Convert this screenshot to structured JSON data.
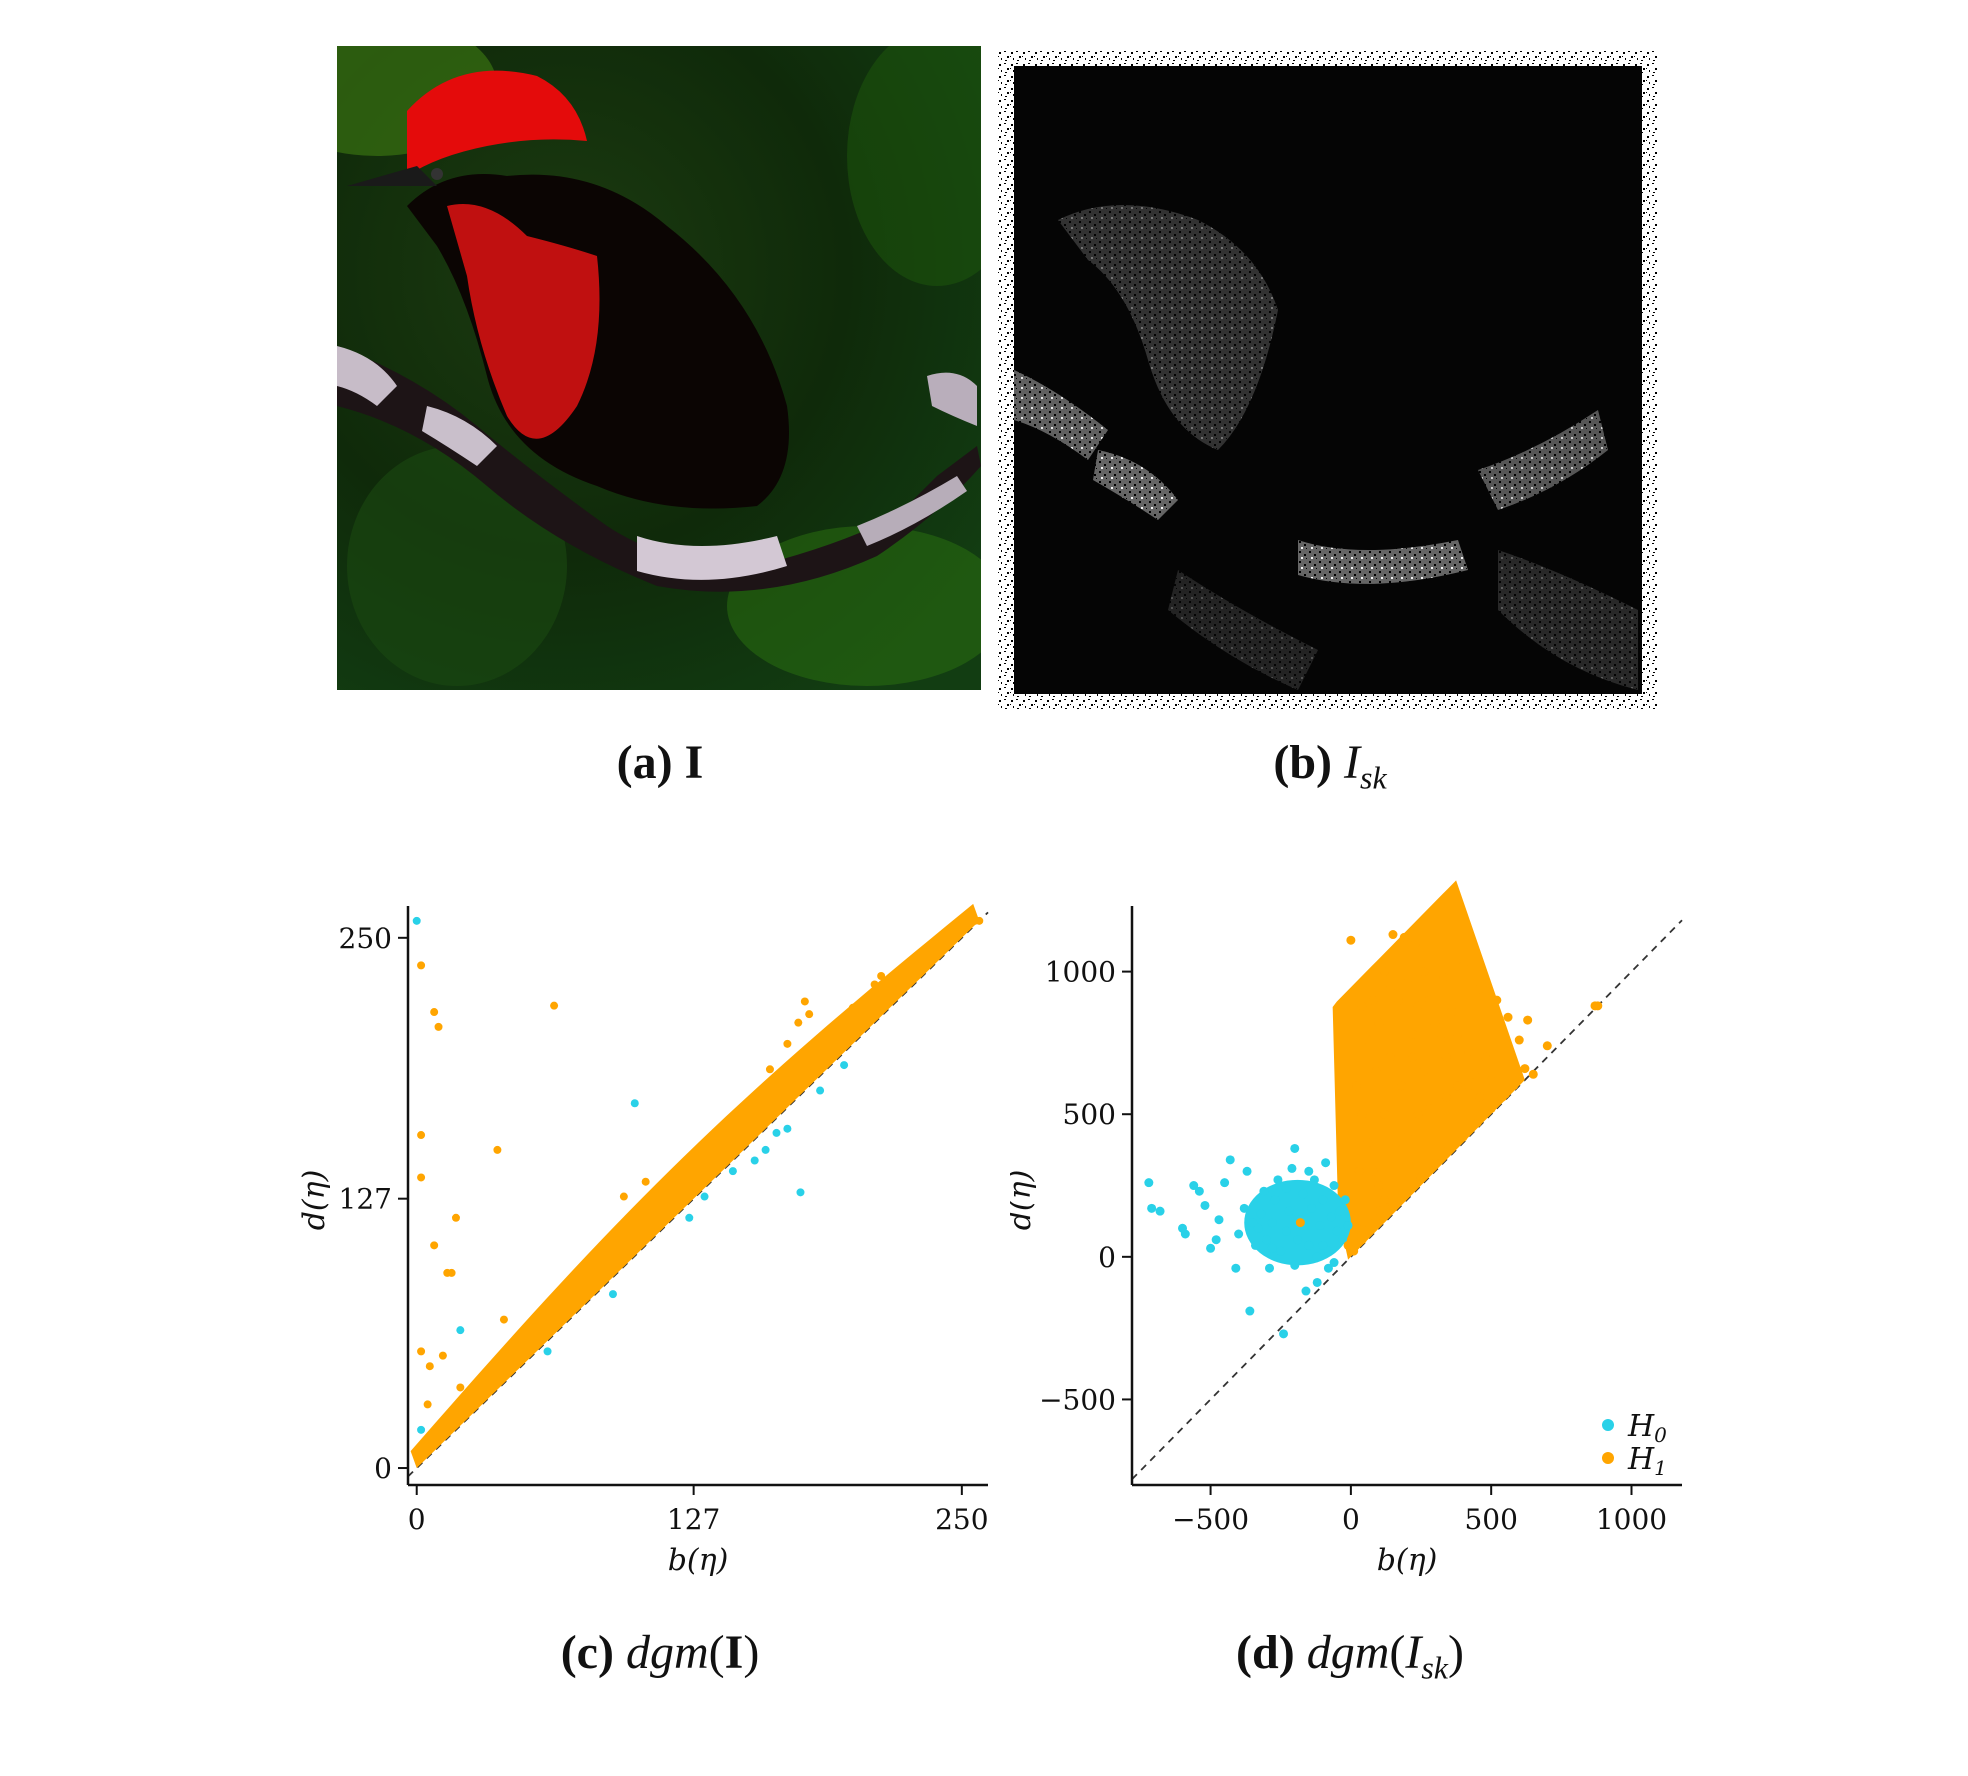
{
  "panels": {
    "a": {
      "caption_label": "(a)",
      "caption_symbol": "I"
    },
    "b": {
      "caption_label": "(b)",
      "caption_symbol": "I",
      "caption_sub": "sk"
    },
    "c": {
      "caption_label": "(c)",
      "caption_func": "dgm",
      "caption_arg": "I"
    },
    "d": {
      "caption_label": "(d)",
      "caption_func": "dgm",
      "caption_arg": "I",
      "caption_sub": "sk"
    }
  },
  "colors": {
    "H0": "#29d1e8",
    "H1": "#ffa500",
    "diagonal": "#333333"
  },
  "chart_data": [
    {
      "type": "scatter",
      "title": "",
      "xlabel": "b(η)",
      "ylabel": "d(η)",
      "xlim": [
        -4,
        262
      ],
      "ylim": [
        -8,
        265
      ],
      "xticks": [
        0,
        127,
        250
      ],
      "yticks": [
        0,
        127,
        250
      ],
      "diagonal": true,
      "legend": false,
      "series": [
        {
          "key": "H0",
          "points": [
            [
              0,
              258
            ],
            [
              246,
              252
            ],
            [
              248,
              255
            ],
            [
              250,
              256
            ],
            [
              244,
              249
            ],
            [
              242,
              247
            ],
            [
              252,
              257
            ],
            [
              240,
              246
            ],
            [
              100,
              172
            ],
            [
              176,
              130
            ],
            [
              160,
              150
            ],
            [
              155,
              145
            ],
            [
              170,
              160
            ],
            [
              125,
              118
            ],
            [
              90,
              82
            ],
            [
              60,
              55
            ],
            [
              20,
              65
            ],
            [
              2,
              18
            ],
            [
              132,
              128
            ],
            [
              145,
              140
            ],
            [
              165,
              158
            ],
            [
              185,
              178
            ],
            [
              196,
              190
            ]
          ]
        },
        {
          "key": "H1",
          "points": [
            [
              2,
              237
            ],
            [
              8,
              215
            ],
            [
              10,
              208
            ],
            [
              63,
              218
            ],
            [
              2,
              157
            ],
            [
              2,
              137
            ],
            [
              37,
              150
            ],
            [
              18,
              118
            ],
            [
              8,
              105
            ],
            [
              14,
              92
            ],
            [
              16,
              92
            ],
            [
              2,
              55
            ],
            [
              12,
              53
            ],
            [
              6,
              48
            ],
            [
              20,
              38
            ],
            [
              5,
              30
            ],
            [
              30,
              40
            ],
            [
              40,
              50
            ],
            [
              55,
              62
            ],
            [
              40,
              70
            ],
            [
              70,
              75
            ],
            [
              80,
              90
            ],
            [
              90,
              100
            ],
            [
              95,
              128
            ],
            [
              115,
              128
            ],
            [
              118,
              138
            ],
            [
              105,
              135
            ],
            [
              125,
              145
            ],
            [
              128,
              147
            ],
            [
              140,
              160
            ],
            [
              150,
              164
            ],
            [
              160,
              180
            ],
            [
              162,
              188
            ],
            [
              170,
              200
            ],
            [
              175,
              210
            ],
            [
              178,
              220
            ],
            [
              180,
              214
            ],
            [
              192,
              207
            ],
            [
              200,
              217
            ],
            [
              210,
              228
            ],
            [
              213,
              232
            ],
            [
              230,
              240
            ],
            [
              235,
              244
            ],
            [
              256,
              258
            ],
            [
              258,
              258
            ],
            [
              254,
              257
            ],
            [
              110,
              125
            ],
            [
              130,
              138
            ],
            [
              145,
              155
            ],
            [
              158,
              170
            ],
            [
              165,
              172
            ],
            [
              188,
              198
            ],
            [
              205,
              212
            ],
            [
              220,
              228
            ],
            [
              225,
              233
            ]
          ]
        }
      ]
    },
    {
      "type": "scatter",
      "title": "",
      "xlabel": "b(η)",
      "ylabel": "d(η)",
      "xlim": [
        -780,
        1180
      ],
      "ylim": [
        -800,
        1230
      ],
      "xticks": [
        -500,
        0,
        500,
        1000
      ],
      "yticks": [
        -500,
        0,
        500,
        1000
      ],
      "diagonal": true,
      "legend": "bottom-right",
      "series": [
        {
          "key": "H0",
          "name": "H0",
          "points": [
            [
              -720,
              260
            ],
            [
              -710,
              170
            ],
            [
              -680,
              160
            ],
            [
              -600,
              100
            ],
            [
              -590,
              80
            ],
            [
              -560,
              250
            ],
            [
              -540,
              230
            ],
            [
              -520,
              180
            ],
            [
              -500,
              30
            ],
            [
              -480,
              60
            ],
            [
              -470,
              130
            ],
            [
              -450,
              260
            ],
            [
              -430,
              340
            ],
            [
              -410,
              -40
            ],
            [
              -400,
              80
            ],
            [
              -380,
              170
            ],
            [
              -370,
              300
            ],
            [
              -360,
              -190
            ],
            [
              -340,
              40
            ],
            [
              -330,
              100
            ],
            [
              -320,
              150
            ],
            [
              -310,
              230
            ],
            [
              -300,
              60
            ],
            [
              -290,
              -40
            ],
            [
              -280,
              120
            ],
            [
              -270,
              200
            ],
            [
              -260,
              270
            ],
            [
              -250,
              20
            ],
            [
              -240,
              -270
            ],
            [
              -230,
              90
            ],
            [
              -220,
              160
            ],
            [
              -210,
              310
            ],
            [
              -200,
              380
            ],
            [
              -190,
              60
            ],
            [
              -180,
              130
            ],
            [
              -170,
              220
            ],
            [
              -160,
              -120
            ],
            [
              -150,
              40
            ],
            [
              -140,
              170
            ],
            [
              -130,
              270
            ],
            [
              -120,
              -90
            ],
            [
              -110,
              110
            ],
            [
              -100,
              200
            ],
            [
              -90,
              330
            ],
            [
              -80,
              20
            ],
            [
              -70,
              140
            ],
            [
              -60,
              250
            ],
            [
              -50,
              90
            ],
            [
              -40,
              160
            ],
            [
              -30,
              60
            ],
            [
              -20,
              200
            ],
            [
              -10,
              110
            ],
            [
              -80,
              -40
            ],
            [
              -60,
              -20
            ],
            [
              -120,
              0
            ],
            [
              -200,
              -30
            ],
            [
              -350,
              120
            ],
            [
              -280,
              30
            ],
            [
              -230,
              240
            ],
            [
              -150,
              300
            ],
            [
              -100,
              40
            ]
          ]
        },
        {
          "key": "H1",
          "name": "H1",
          "points": [
            [
              0,
              1110
            ],
            [
              150,
              1130
            ],
            [
              190,
              1120
            ],
            [
              230,
              1100
            ],
            [
              120,
              1000
            ],
            [
              260,
              1000
            ],
            [
              330,
              980
            ],
            [
              400,
              1020
            ],
            [
              460,
              940
            ],
            [
              520,
              900
            ],
            [
              560,
              840
            ],
            [
              600,
              760
            ],
            [
              630,
              830
            ],
            [
              700,
              740
            ],
            [
              870,
              880
            ],
            [
              880,
              880
            ],
            [
              40,
              880
            ],
            [
              60,
              760
            ],
            [
              80,
              900
            ],
            [
              100,
              820
            ],
            [
              140,
              940
            ],
            [
              170,
              900
            ],
            [
              200,
              960
            ],
            [
              220,
              780
            ],
            [
              240,
              880
            ],
            [
              280,
              900
            ],
            [
              300,
              820
            ],
            [
              320,
              760
            ],
            [
              340,
              700
            ],
            [
              360,
              860
            ],
            [
              380,
              780
            ],
            [
              420,
              720
            ],
            [
              440,
              640
            ],
            [
              480,
              700
            ],
            [
              500,
              620
            ],
            [
              540,
              560
            ],
            [
              580,
              600
            ],
            [
              620,
              660
            ],
            [
              650,
              640
            ],
            [
              20,
              600
            ],
            [
              40,
              500
            ],
            [
              60,
              400
            ],
            [
              80,
              300
            ],
            [
              100,
              250
            ],
            [
              120,
              200
            ],
            [
              150,
              180
            ],
            [
              200,
              240
            ],
            [
              250,
              280
            ],
            [
              300,
              330
            ],
            [
              350,
              380
            ],
            [
              400,
              420
            ],
            [
              450,
              470
            ],
            [
              500,
              520
            ],
            [
              550,
              570
            ],
            [
              20,
              100
            ],
            [
              40,
              60
            ],
            [
              10,
              20
            ],
            [
              60,
              120
            ],
            [
              100,
              160
            ],
            [
              120,
              500
            ],
            [
              180,
              600
            ],
            [
              220,
              700
            ],
            [
              260,
              650
            ],
            [
              30,
              300
            ],
            [
              160,
              400
            ],
            [
              280,
              520
            ],
            [
              200,
              420
            ],
            [
              340,
              560
            ],
            [
              380,
              600
            ],
            [
              420,
              600
            ],
            [
              460,
              560
            ],
            [
              240,
              500
            ],
            [
              140,
              700
            ],
            [
              90,
              650
            ],
            [
              -180,
              120
            ],
            [
              -10,
              40
            ]
          ]
        }
      ]
    }
  ]
}
